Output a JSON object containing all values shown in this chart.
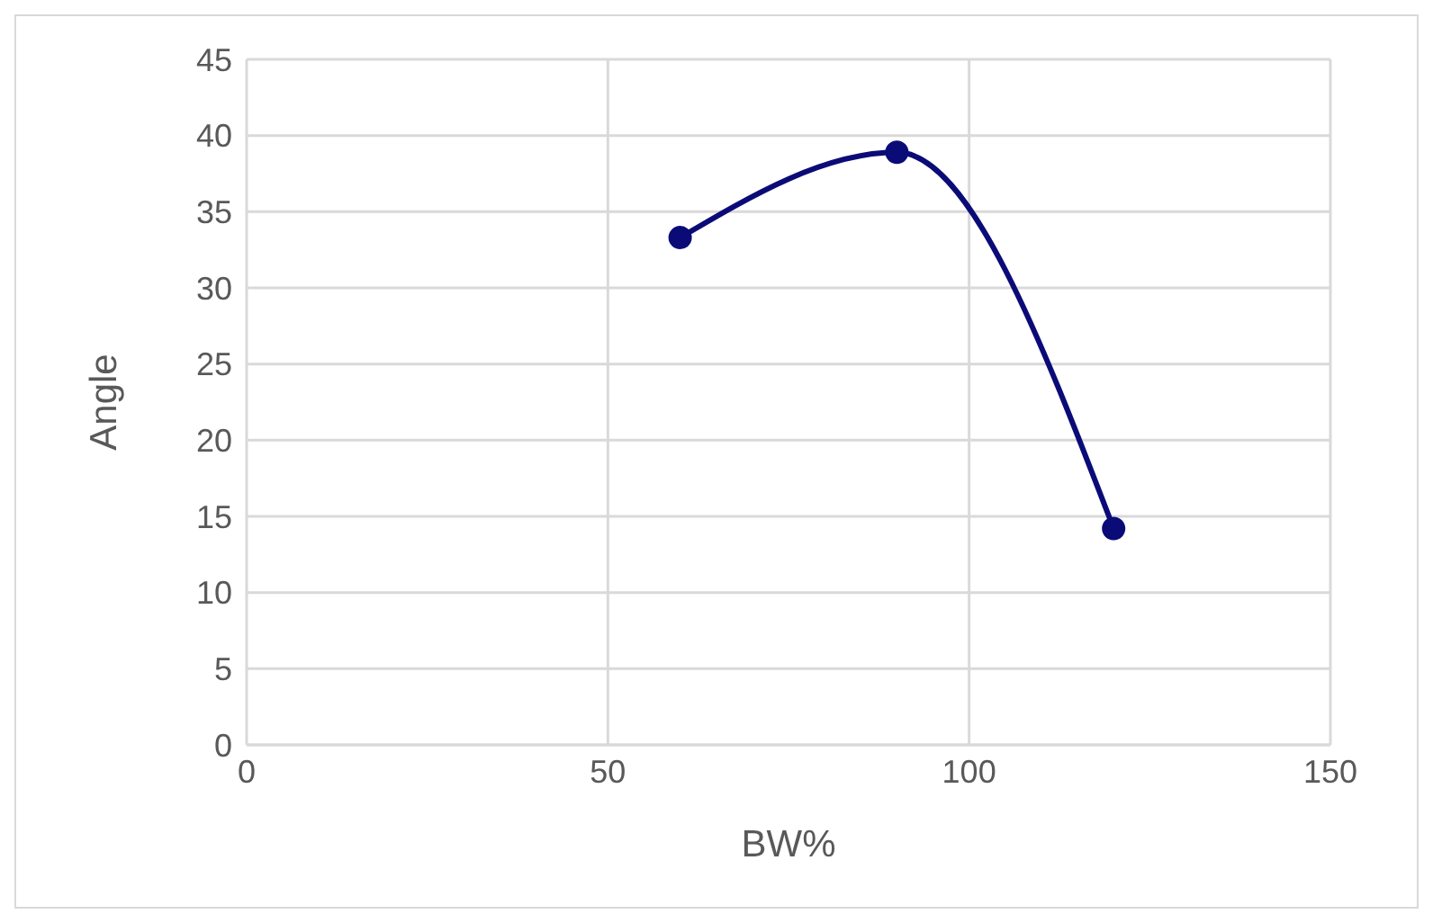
{
  "chart_data": {
    "type": "line",
    "xlabel": "BW%",
    "ylabel": "Angle",
    "x": [
      60,
      90,
      120
    ],
    "series": [
      {
        "color": "#0b0b78",
        "values": [
          33.3,
          38.9,
          14.2
        ]
      }
    ],
    "xlim": [
      0,
      150
    ],
    "xticks": [
      0,
      50,
      100,
      150
    ],
    "ylim": [
      0,
      45
    ],
    "yticks": [
      0,
      5,
      10,
      15,
      20,
      25,
      30,
      35,
      40,
      45
    ],
    "grid": true,
    "marker": "circle",
    "line_style": "solid",
    "legend": false
  }
}
